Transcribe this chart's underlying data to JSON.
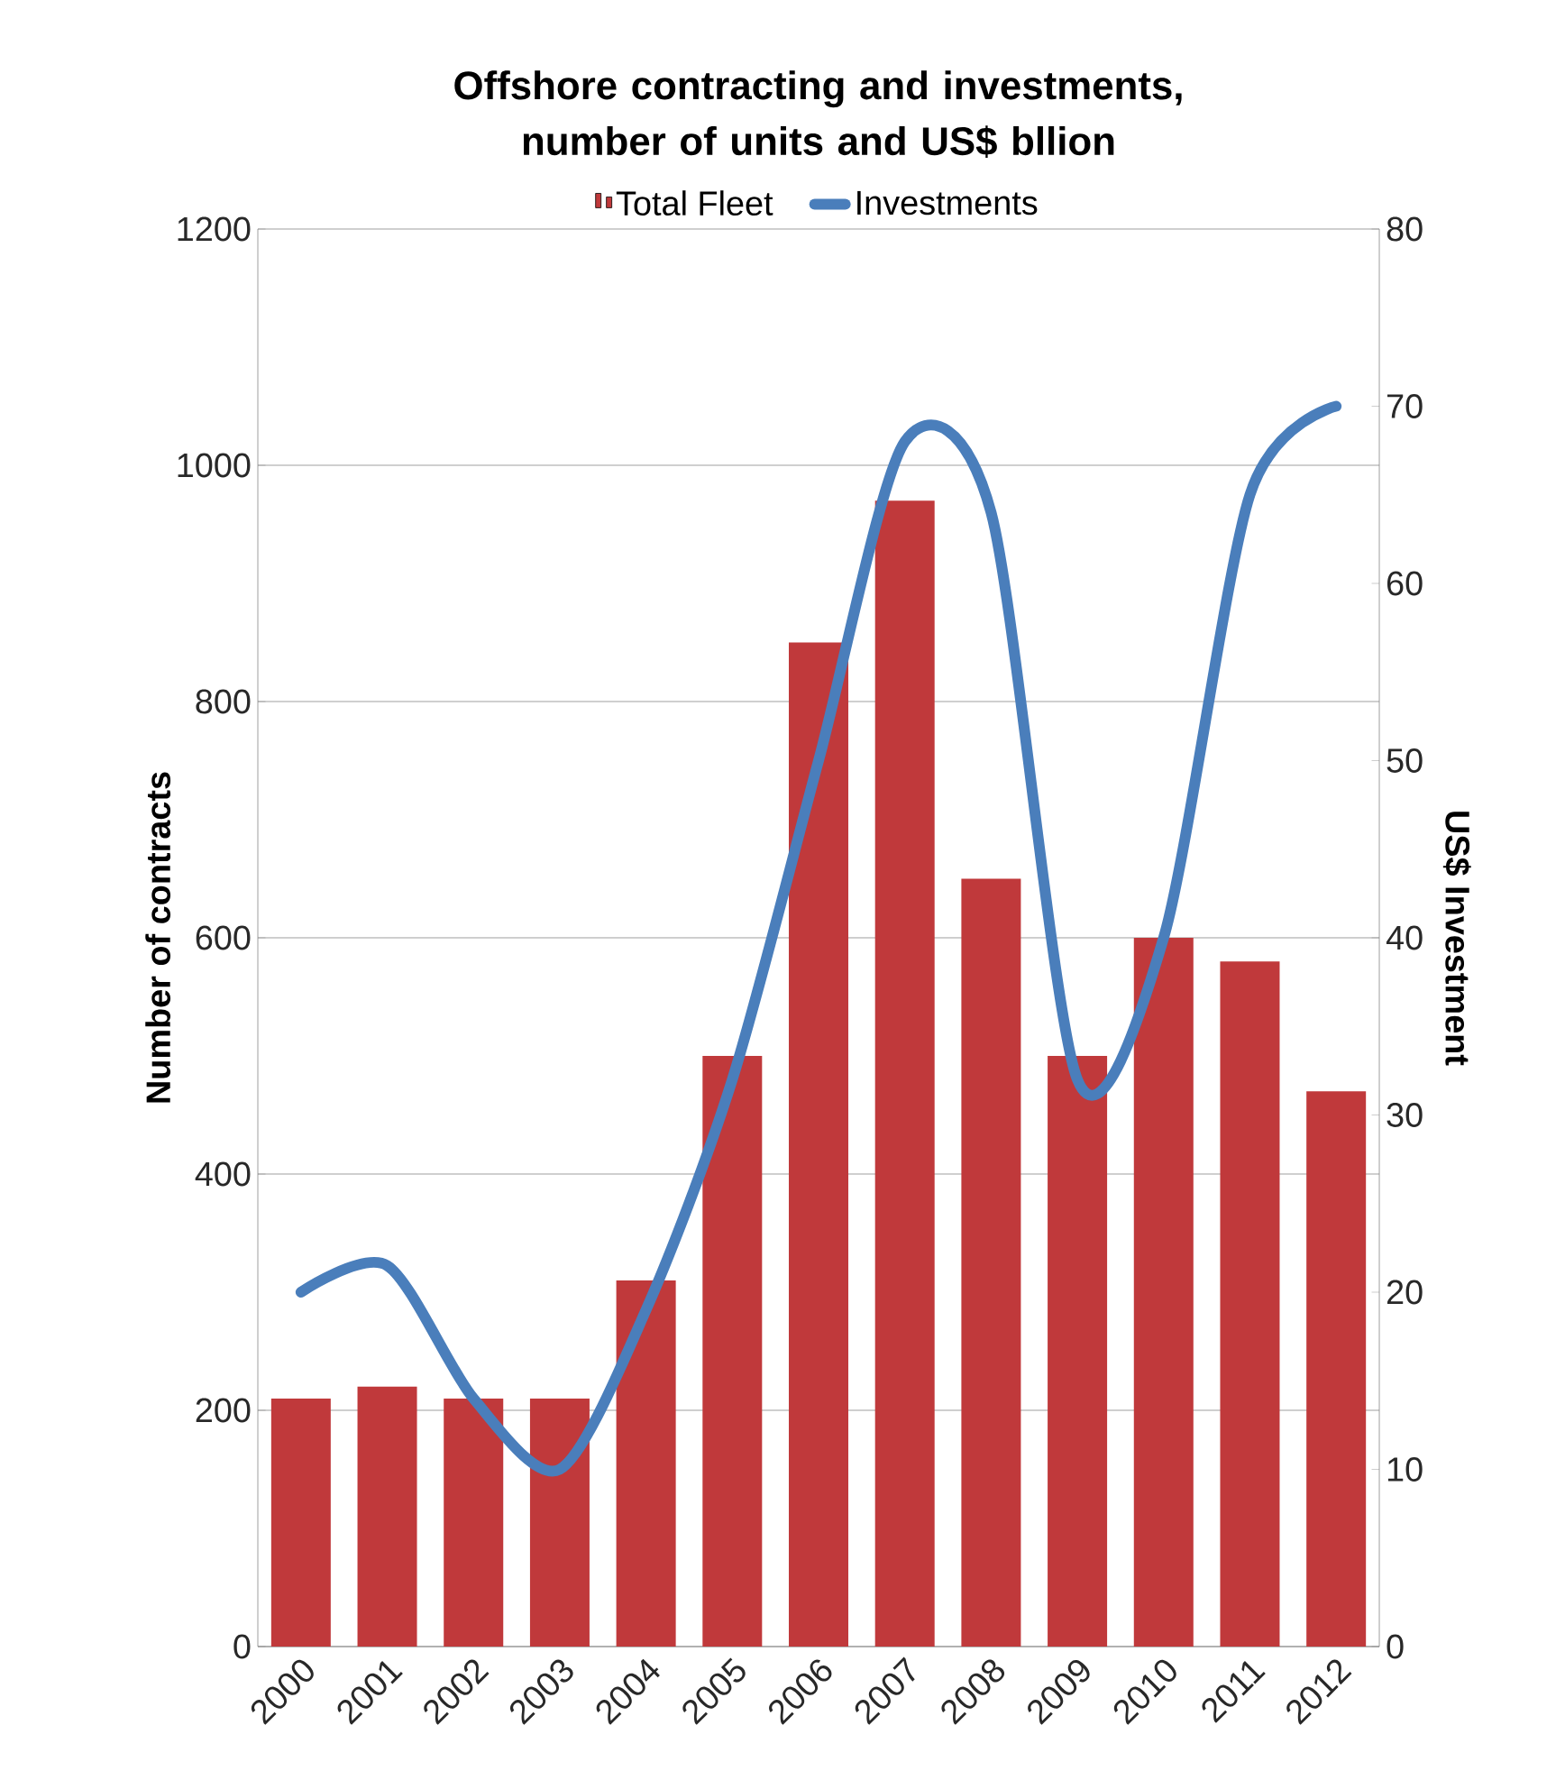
{
  "chart_data": {
    "type": "bar",
    "title": "Offshore contracting and investments, number of units and US$ bllion",
    "ylabel": "Number of contracts",
    "y2label": "US$ Investment",
    "categories": [
      "2000",
      "2001",
      "2002",
      "2003",
      "2004",
      "2005",
      "2006",
      "2007",
      "2008",
      "2009",
      "2010",
      "2011",
      "2012"
    ],
    "series": [
      {
        "name": "Total Fleet",
        "color": "#c0393b",
        "values": [
          210,
          220,
          210,
          210,
          310,
          500,
          850,
          970,
          650,
          500,
          600,
          580,
          470
        ]
      },
      {
        "name": "Investments",
        "type": "line",
        "axis": "y2",
        "color": "#4a7ebb",
        "values": [
          20,
          21.5,
          14,
          10,
          19,
          32,
          50,
          68,
          64,
          32,
          40,
          65,
          70
        ]
      }
    ],
    "ylim": [
      0,
      1200
    ],
    "yticks": [
      0,
      200,
      400,
      600,
      800,
      1000,
      1200
    ],
    "y2lim": [
      0,
      80
    ],
    "y2ticks": [
      0,
      10,
      20,
      30,
      40,
      50,
      60,
      70,
      80
    ],
    "grid": "y",
    "legend": "top"
  }
}
